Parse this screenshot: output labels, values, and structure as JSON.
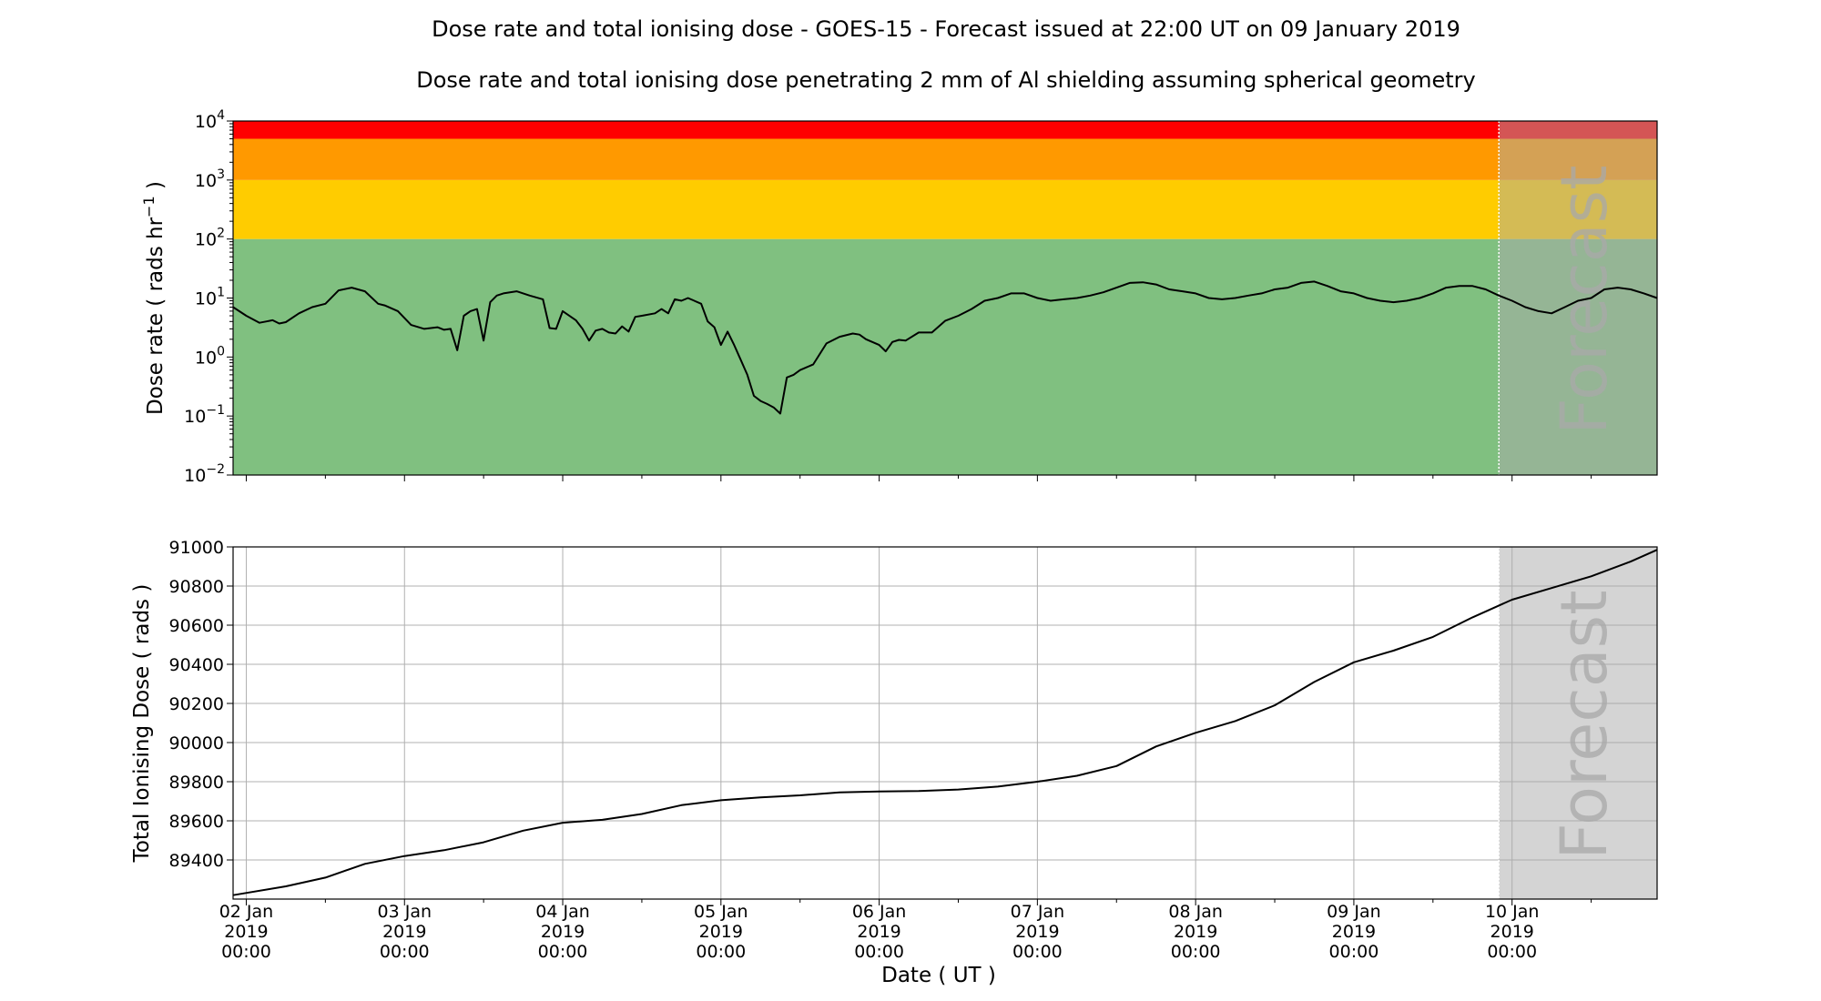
{
  "figure": {
    "title": "Dose rate and total ionising dose - GOES-15 - Forecast issued at 22:00 UT on 09 January 2019",
    "subtitle": "Dose rate and total ionising dose penetrating 2 mm of Al shielding assuming spherical geometry",
    "xlabel": "Date ( UT )",
    "forecast_label": "Forecast",
    "forecast_shade_color": "#a9a9a9",
    "x_ticks": [
      {
        "d": "02 Jan",
        "y": "2019",
        "t": "00:00"
      },
      {
        "d": "03 Jan",
        "y": "2019",
        "t": "00:00"
      },
      {
        "d": "04 Jan",
        "y": "2019",
        "t": "00:00"
      },
      {
        "d": "05 Jan",
        "y": "2019",
        "t": "00:00"
      },
      {
        "d": "06 Jan",
        "y": "2019",
        "t": "00:00"
      },
      {
        "d": "07 Jan",
        "y": "2019",
        "t": "00:00"
      },
      {
        "d": "08 Jan",
        "y": "2019",
        "t": "00:00"
      },
      {
        "d": "09 Jan",
        "y": "2019",
        "t": "00:00"
      },
      {
        "d": "10 Jan",
        "y": "2019",
        "t": "00:00"
      }
    ]
  },
  "chart_data": [
    {
      "type": "line",
      "ylabel": "Dose rate ( rads hr",
      "ylabel_sup": "−1",
      "ylabel_end": " )",
      "yscale": "log",
      "ylim": [
        0.01,
        10000
      ],
      "yticks": [
        {
          "base": "10",
          "exp": "−2",
          "v": 0.01
        },
        {
          "base": "10",
          "exp": "−1",
          "v": 0.1
        },
        {
          "base": "10",
          "exp": "0",
          "v": 1
        },
        {
          "base": "10",
          "exp": "1",
          "v": 10
        },
        {
          "base": "10",
          "exp": "2",
          "v": 100
        },
        {
          "base": "10",
          "exp": "3",
          "v": 1000
        },
        {
          "base": "10",
          "exp": "4",
          "v": 10000
        }
      ],
      "xlim": [
        "2019-01-01 22:00",
        "2019-01-10 22:00"
      ],
      "forecast_start": "2019-01-09 22:00",
      "grid": false,
      "bands": [
        {
          "from": 0.01,
          "to": 100,
          "color": "#80c080"
        },
        {
          "from": 100,
          "to": 1000,
          "color": "#ffcc00"
        },
        {
          "from": 1000,
          "to": 5000,
          "color": "#ff9900"
        },
        {
          "from": 5000,
          "to": 10000,
          "color": "#ff0000"
        }
      ],
      "series": [
        {
          "color": "#000000",
          "x": [
            "2019-01-01 22:00",
            "2019-01-02 00:00",
            "2019-01-02 02:00",
            "2019-01-02 03:00",
            "2019-01-02 04:00",
            "2019-01-02 05:00",
            "2019-01-02 06:00",
            "2019-01-02 08:00",
            "2019-01-02 10:00",
            "2019-01-02 12:00",
            "2019-01-02 14:00",
            "2019-01-02 16:00",
            "2019-01-02 18:00",
            "2019-01-02 20:00",
            "2019-01-02 21:00",
            "2019-01-02 23:00",
            "2019-01-03 01:00",
            "2019-01-03 03:00",
            "2019-01-03 05:00",
            "2019-01-03 06:00",
            "2019-01-03 07:00",
            "2019-01-03 08:00",
            "2019-01-03 09:00",
            "2019-01-03 10:00",
            "2019-01-03 11:00",
            "2019-01-03 12:00",
            "2019-01-03 13:00",
            "2019-01-03 14:00",
            "2019-01-03 15:00",
            "2019-01-03 17:00",
            "2019-01-03 19:00",
            "2019-01-03 21:00",
            "2019-01-03 22:00",
            "2019-01-03 23:00",
            "2019-01-04 00:00",
            "2019-01-04 02:00",
            "2019-01-04 03:00",
            "2019-01-04 04:00",
            "2019-01-04 05:00",
            "2019-01-04 06:00",
            "2019-01-04 07:00",
            "2019-01-04 08:00",
            "2019-01-04 09:00",
            "2019-01-04 10:00",
            "2019-01-04 11:00",
            "2019-01-04 12:00",
            "2019-01-04 14:00",
            "2019-01-04 15:00",
            "2019-01-04 16:00",
            "2019-01-04 17:00",
            "2019-01-04 18:00",
            "2019-01-04 19:00",
            "2019-01-04 21:00",
            "2019-01-04 22:00",
            "2019-01-04 23:00",
            "2019-01-05 00:00",
            "2019-01-05 01:00",
            "2019-01-05 02:00",
            "2019-01-05 03:00",
            "2019-01-05 04:00",
            "2019-01-05 05:00",
            "2019-01-05 06:00",
            "2019-01-05 07:00",
            "2019-01-05 08:00",
            "2019-01-05 09:00",
            "2019-01-05 10:00",
            "2019-01-05 11:00",
            "2019-01-05 12:00",
            "2019-01-05 14:00",
            "2019-01-05 16:00",
            "2019-01-05 18:00",
            "2019-01-05 20:00",
            "2019-01-05 21:00",
            "2019-01-05 22:00",
            "2019-01-06 00:00",
            "2019-01-06 01:00",
            "2019-01-06 02:00",
            "2019-01-06 03:00",
            "2019-01-06 04:00",
            "2019-01-06 06:00",
            "2019-01-06 08:00",
            "2019-01-06 10:00",
            "2019-01-06 12:00",
            "2019-01-06 14:00",
            "2019-01-06 16:00",
            "2019-01-06 18:00",
            "2019-01-06 20:00",
            "2019-01-06 22:00",
            "2019-01-07 00:00",
            "2019-01-07 02:00",
            "2019-01-07 04:00",
            "2019-01-07 06:00",
            "2019-01-07 08:00",
            "2019-01-07 10:00",
            "2019-01-07 12:00",
            "2019-01-07 14:00",
            "2019-01-07 16:00",
            "2019-01-07 18:00",
            "2019-01-07 20:00",
            "2019-01-07 22:00",
            "2019-01-08 00:00",
            "2019-01-08 02:00",
            "2019-01-08 04:00",
            "2019-01-08 06:00",
            "2019-01-08 08:00",
            "2019-01-08 10:00",
            "2019-01-08 12:00",
            "2019-01-08 14:00",
            "2019-01-08 16:00",
            "2019-01-08 18:00",
            "2019-01-08 20:00",
            "2019-01-08 22:00",
            "2019-01-09 00:00",
            "2019-01-09 02:00",
            "2019-01-09 04:00",
            "2019-01-09 06:00",
            "2019-01-09 08:00",
            "2019-01-09 10:00",
            "2019-01-09 12:00",
            "2019-01-09 14:00",
            "2019-01-09 16:00",
            "2019-01-09 18:00",
            "2019-01-09 20:00",
            "2019-01-09 22:00",
            "2019-01-10 00:00",
            "2019-01-10 02:00",
            "2019-01-10 04:00",
            "2019-01-10 06:00",
            "2019-01-10 08:00",
            "2019-01-10 10:00",
            "2019-01-10 12:00",
            "2019-01-10 14:00",
            "2019-01-10 16:00",
            "2019-01-10 18:00",
            "2019-01-10 20:00",
            "2019-01-10 22:00"
          ],
          "values": [
            7,
            5,
            3.8,
            4,
            4.2,
            3.7,
            3.9,
            5.5,
            7,
            8,
            13.5,
            15,
            13,
            8,
            7.5,
            6,
            3.5,
            3,
            3.2,
            2.9,
            3,
            1.3,
            5,
            6,
            6.5,
            1.9,
            8.5,
            11,
            12,
            13,
            11,
            9.5,
            3.1,
            3,
            6,
            4.2,
            3,
            1.9,
            2.8,
            3,
            2.6,
            2.5,
            3.3,
            2.7,
            4.8,
            5,
            5.5,
            6.5,
            5.5,
            9.5,
            9,
            10,
            8,
            4,
            3.2,
            1.6,
            2.7,
            1.6,
            0.9,
            0.5,
            0.22,
            0.18,
            0.16,
            0.14,
            0.11,
            0.45,
            0.5,
            0.6,
            0.75,
            1.7,
            2.2,
            2.5,
            2.4,
            2,
            1.6,
            1.25,
            1.8,
            1.95,
            1.9,
            2.6,
            2.6,
            4.1,
            5,
            6.5,
            9,
            10,
            12,
            12,
            10,
            9,
            9.5,
            10,
            11,
            12.5,
            15,
            18,
            18.5,
            17,
            14,
            13,
            12,
            10,
            9.5,
            10,
            11,
            12,
            14,
            15,
            18,
            19,
            16,
            13,
            12,
            10,
            9,
            8.5,
            9,
            10,
            12,
            15,
            16,
            16,
            14,
            11,
            9,
            7,
            6,
            5.5,
            7,
            9,
            10,
            14,
            15,
            14,
            12,
            10
          ]
        }
      ]
    },
    {
      "type": "line",
      "ylabel": "Total Ionising Dose ( rads )",
      "ylim": [
        89200,
        91000
      ],
      "yticks": [
        89400,
        89600,
        89800,
        90000,
        90200,
        90400,
        90600,
        90800,
        91000
      ],
      "xlim": [
        "2019-01-01 22:00",
        "2019-01-10 22:00"
      ],
      "forecast_start": "2019-01-09 22:00",
      "grid": true,
      "series": [
        {
          "color": "#000000",
          "x": [
            "2019-01-01 22:00",
            "2019-01-02 06:00",
            "2019-01-02 12:00",
            "2019-01-02 18:00",
            "2019-01-03 00:00",
            "2019-01-03 06:00",
            "2019-01-03 12:00",
            "2019-01-03 18:00",
            "2019-01-04 00:00",
            "2019-01-04 06:00",
            "2019-01-04 12:00",
            "2019-01-04 18:00",
            "2019-01-05 00:00",
            "2019-01-05 06:00",
            "2019-01-05 12:00",
            "2019-01-05 18:00",
            "2019-01-06 00:00",
            "2019-01-06 06:00",
            "2019-01-06 12:00",
            "2019-01-06 18:00",
            "2019-01-07 00:00",
            "2019-01-07 06:00",
            "2019-01-07 12:00",
            "2019-01-07 18:00",
            "2019-01-08 00:00",
            "2019-01-08 06:00",
            "2019-01-08 12:00",
            "2019-01-08 18:00",
            "2019-01-09 00:00",
            "2019-01-09 06:00",
            "2019-01-09 12:00",
            "2019-01-09 18:00",
            "2019-01-10 00:00",
            "2019-01-10 06:00",
            "2019-01-10 12:00",
            "2019-01-10 18:00",
            "2019-01-10 22:00"
          ],
          "values": [
            89220,
            89265,
            89310,
            89380,
            89420,
            89450,
            89490,
            89550,
            89590,
            89605,
            89635,
            89680,
            89705,
            89720,
            89730,
            89745,
            89750,
            89752,
            89760,
            89775,
            89800,
            89830,
            89880,
            89980,
            90050,
            90110,
            90190,
            90310,
            90410,
            90470,
            90540,
            90640,
            90730,
            90790,
            90850,
            90925,
            90985
          ]
        }
      ]
    }
  ]
}
